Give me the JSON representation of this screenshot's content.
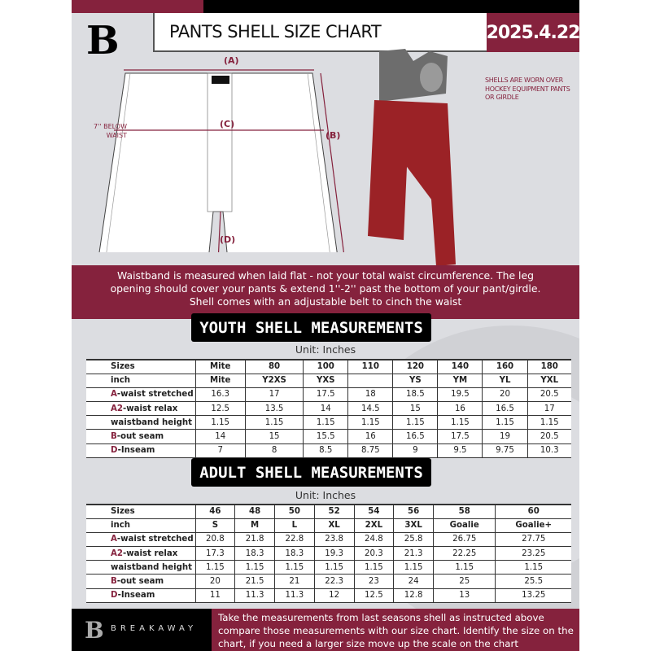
{
  "header": {
    "title": "PANTS SHELL SIZE CHART",
    "date": "2025.4.22",
    "logo_letter": "B"
  },
  "diagram": {
    "label_a": "(A)",
    "label_b": "(B)",
    "label_c": "(C)",
    "label_d": "(D)",
    "below_waist": "7'' BELOW WAIST",
    "note": "SHELLS ARE WORN OVER HOCKEY EQUIPMENT PANTS OR GIRDLE"
  },
  "banner": {
    "line1": "Waistband is measured when laid flat - not your total waist circumference. The leg",
    "line2": "opening should cover your pants & extend 1''-2'' past the bottom of your pant/girdle.",
    "line3": "Shell comes with an adjustable belt to cinch the waist"
  },
  "youth": {
    "title": "YOUTH SHELL MEASUREMENTS",
    "unit": "Unit: Inches",
    "rows": [
      {
        "prefix": "",
        "label": "Sizes",
        "values": [
          "Mite",
          "80",
          "100",
          "110",
          "120",
          "140",
          "160",
          "180"
        ]
      },
      {
        "prefix": "",
        "label": "inch",
        "values": [
          "Mite",
          "Y2XS",
          "YXS",
          "",
          "YS",
          "YM",
          "YL",
          "YXL"
        ]
      },
      {
        "prefix": "A",
        "label": "-waist stretched",
        "values": [
          "16.3",
          "17",
          "17.5",
          "18",
          "18.5",
          "19.5",
          "20",
          "20.5"
        ]
      },
      {
        "prefix": "A2",
        "label": "-waist relax",
        "values": [
          "12.5",
          "13.5",
          "14",
          "14.5",
          "15",
          "16",
          "16.5",
          "17"
        ]
      },
      {
        "prefix": "",
        "label": "waistband height",
        "values": [
          "1.15",
          "1.15",
          "1.15",
          "1.15",
          "1.15",
          "1.15",
          "1.15",
          "1.15"
        ]
      },
      {
        "prefix": "B",
        "label": "-out seam",
        "values": [
          "14",
          "15",
          "15.5",
          "16",
          "16.5",
          "17.5",
          "19",
          "20.5"
        ]
      },
      {
        "prefix": "D",
        "label": "-Inseam",
        "values": [
          "7",
          "8",
          "8.5",
          "8.75",
          "9",
          "9.5",
          "9.75",
          "10.3"
        ]
      }
    ]
  },
  "adult": {
    "title": "ADULT SHELL MEASUREMENTS",
    "unit": "Unit: Inches",
    "rows": [
      {
        "prefix": "",
        "label": "Sizes",
        "values": [
          "46",
          "48",
          "50",
          "52",
          "54",
          "56",
          "58",
          "60"
        ]
      },
      {
        "prefix": "",
        "label": "inch",
        "values": [
          "S",
          "M",
          "L",
          "XL",
          "2XL",
          "3XL",
          "Goalie",
          "Goalie+"
        ]
      },
      {
        "prefix": "A",
        "label": "-waist stretched",
        "values": [
          "20.8",
          "21.8",
          "22.8",
          "23.8",
          "24.8",
          "25.8",
          "26.75",
          "27.75"
        ]
      },
      {
        "prefix": "A2",
        "label": "-waist relax",
        "values": [
          "17.3",
          "18.3",
          "18.3",
          "19.3",
          "20.3",
          "21.3",
          "22.25",
          "23.25"
        ]
      },
      {
        "prefix": "",
        "label": "waistband height",
        "values": [
          "1.15",
          "1.15",
          "1.15",
          "1.15",
          "1.15",
          "1.15",
          "1.15",
          "1.15"
        ]
      },
      {
        "prefix": "B",
        "label": "-out seam",
        "values": [
          "20",
          "21.5",
          "21",
          "22.3",
          "23",
          "24",
          "25",
          "25.5"
        ]
      },
      {
        "prefix": "D",
        "label": "-Inseam",
        "values": [
          "11",
          "11.3",
          "11.3",
          "12",
          "12.5",
          "12.8",
          "13",
          "13.25"
        ]
      }
    ]
  },
  "footer": {
    "brand": "BREAKAWAY",
    "text": "Take the measurements from last seasons shell as instructed above compare those measurements  with our size chart. Identify the size on the chart, if you need a larger size move up the scale on the chart"
  },
  "colors": {
    "accent": "#85223d",
    "background": "#dcdde1"
  }
}
